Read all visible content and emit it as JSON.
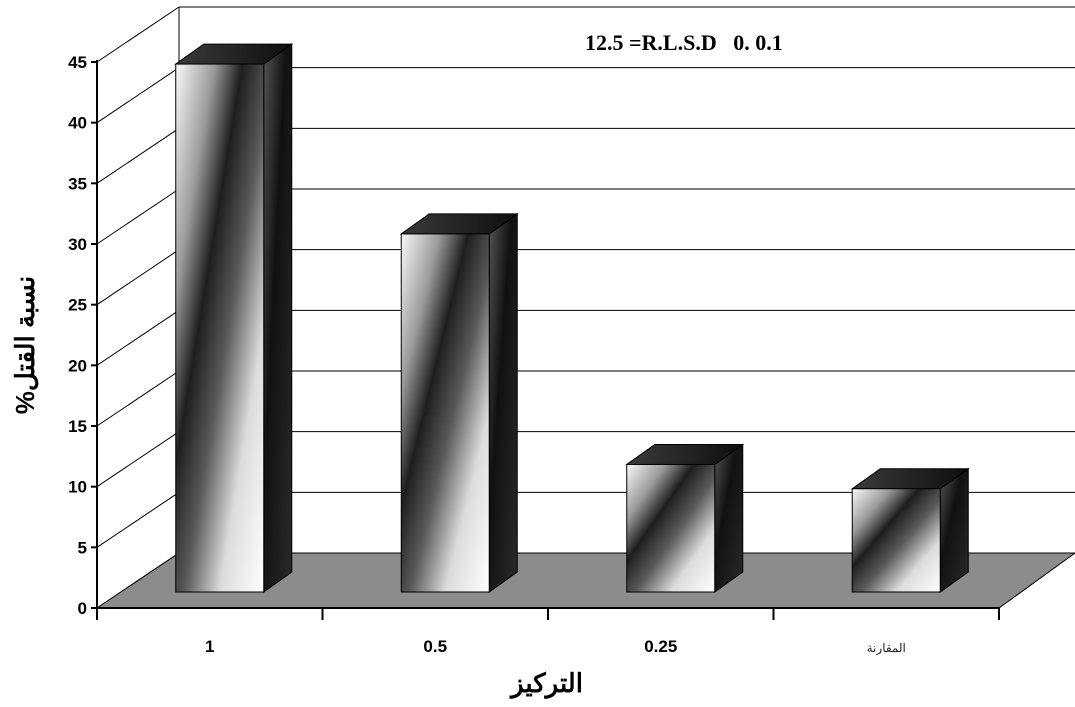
{
  "chart_data": {
    "type": "bar",
    "categories": [
      "1",
      "0.5",
      "0.25",
      "المقارنة"
    ],
    "values": [
      44.5,
      30.5,
      11.5,
      9.5
    ],
    "xlabel": "التركيز",
    "ylabel": "نسبة القتل%",
    "ylim": [
      0,
      45
    ],
    "yticks": [
      "0",
      "5",
      "10",
      "15",
      "20",
      "25",
      "30",
      "35",
      "40",
      "45"
    ],
    "annotation": "12.5 =R.L.S.D   0. 0.1",
    "grid": true,
    "style": "3d-bar",
    "colors": {
      "floor": "#8c8c8c",
      "bar_dark": "#1a1a1a",
      "bar_light": "#f2f2f2",
      "grid": "#000000"
    }
  }
}
